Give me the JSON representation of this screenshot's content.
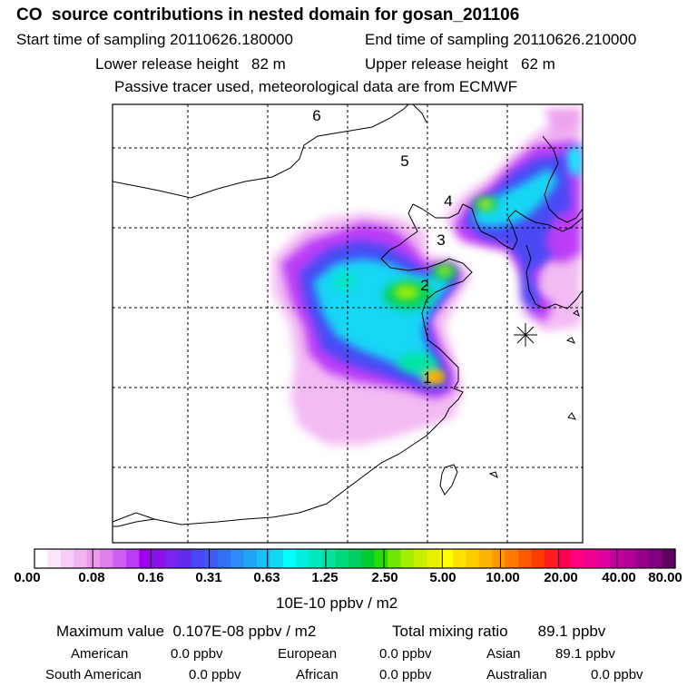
{
  "header": {
    "title": "CO  source contributions in nested domain for gosan_201106",
    "start_label": "Start time of sampling 20110626.180000",
    "end_label": "End time of sampling 20110626.210000",
    "lower_label": "Lower release height   82 m",
    "upper_label": "Upper release height   62 m",
    "note": "Passive tracer used, meteorological data are from ECMWF"
  },
  "map": {
    "region_labels": [
      "1",
      "2",
      "3",
      "4",
      "5",
      "6"
    ],
    "receptor": "gosan"
  },
  "colorbar": {
    "ticks": [
      "0.00",
      "0.08",
      "0.16",
      "0.31",
      "0.63",
      "1.25",
      "2.50",
      "5.00",
      "10.00",
      "20.00",
      "40.00",
      "80.00"
    ],
    "unit": "10E-10 ppbv / m2",
    "colors": [
      "#ffffff",
      "#fbe6fb",
      "#f7cdf7",
      "#f2b4f2",
      "#ec98ec",
      "#e07ff0",
      "#d060f5",
      "#bb3cf7",
      "#a000f0",
      "#8c10e8",
      "#7a24ee",
      "#5f2cf0",
      "#4848f4",
      "#3c5cf5",
      "#2f72f5",
      "#2a8cf7",
      "#1fa6f8",
      "#1ac1f8",
      "#14d7f5",
      "#00ffff",
      "#00f0e0",
      "#00e8c0",
      "#00e4a0",
      "#00d87c",
      "#00d060",
      "#00cc30",
      "#28dc00",
      "#6ee600",
      "#a0ee00",
      "#c8f000",
      "#e6f000",
      "#ffff00",
      "#ffe000",
      "#ffcc00",
      "#ffb400",
      "#ff9600",
      "#ff7800",
      "#ff5a00",
      "#ff3c00",
      "#ff1e1e",
      "#ff0050",
      "#ff0080",
      "#f00090",
      "#e000a0",
      "#c800a0",
      "#b00098",
      "#98008c",
      "#800080",
      "#600060"
    ]
  },
  "summary": {
    "max_label": "Maximum value  0.107E-08 ppbv / m2",
    "total_label": "Total mixing ratio       89.1 ppbv",
    "american": "American",
    "american_val": "0.0 ppbv",
    "european": "European",
    "european_val": "0.0 ppbv",
    "asian": "Asian",
    "asian_val": "89.1 ppbv",
    "south_american": "South American",
    "south_american_val": "0.0 ppbv",
    "african": "African",
    "african_val": "0.0 ppbv",
    "australian": "Australian",
    "australian_val": "0.0 ppbv"
  }
}
